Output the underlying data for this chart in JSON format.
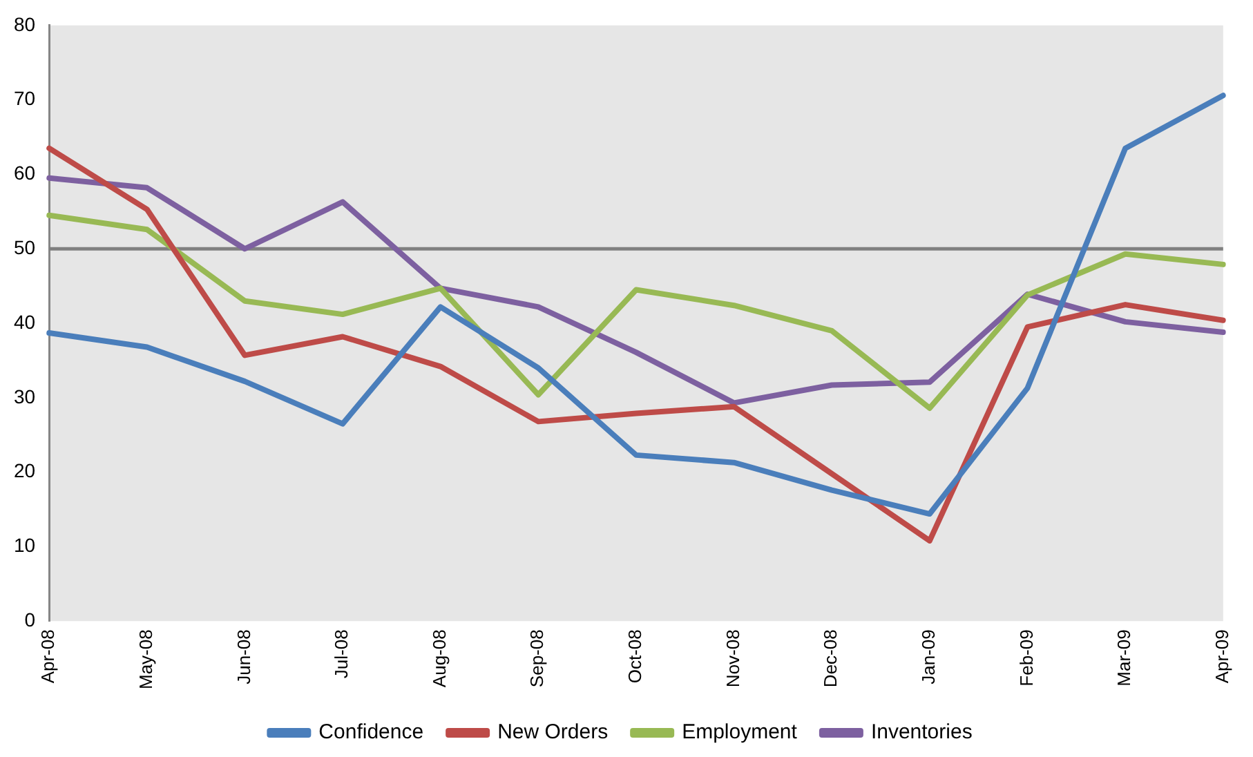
{
  "chart_data": {
    "type": "line",
    "categories": [
      "Apr-08",
      "May-08",
      "Jun-08",
      "Jul-08",
      "Aug-08",
      "Sep-08",
      "Oct-08",
      "Nov-08",
      "Dec-08",
      "Jan-09",
      "Feb-09",
      "Mar-09",
      "Apr-09"
    ],
    "series": [
      {
        "name": "Confidence",
        "color": "#4a7ebb",
        "values": [
          38.7,
          36.8,
          32.2,
          26.5,
          42.2,
          34,
          22.3,
          21.3,
          17.6,
          14.4,
          31.3,
          63.5,
          70.6
        ]
      },
      {
        "name": "New Orders",
        "color": "#be4b48",
        "values": [
          63.5,
          55.3,
          35.7,
          38.2,
          34.2,
          26.8,
          27.9,
          28.8,
          19.8,
          10.8,
          39.5,
          42.5,
          40.4
        ]
      },
      {
        "name": "Employment",
        "color": "#98b954",
        "values": [
          54.5,
          52.6,
          43.0,
          41.2,
          44.7,
          30.4,
          44.5,
          42.4,
          39.0,
          28.6,
          43.8,
          49.3,
          47.9
        ]
      },
      {
        "name": "Inventories",
        "color": "#7d60a0",
        "values": [
          59.5,
          58.2,
          50.0,
          56.3,
          44.7,
          42.2,
          36.1,
          29.3,
          31.7,
          32.1,
          43.9,
          40.2,
          38.8
        ]
      }
    ],
    "ylim": [
      0,
      80
    ],
    "yticks": [
      0,
      10,
      20,
      30,
      40,
      50,
      60,
      70,
      80
    ],
    "grid": false,
    "legend": "bottom",
    "marker": "none",
    "line_style": "solid",
    "ref_lines": [
      {
        "axis": "y",
        "value": 50,
        "color": "#808080"
      }
    ]
  }
}
